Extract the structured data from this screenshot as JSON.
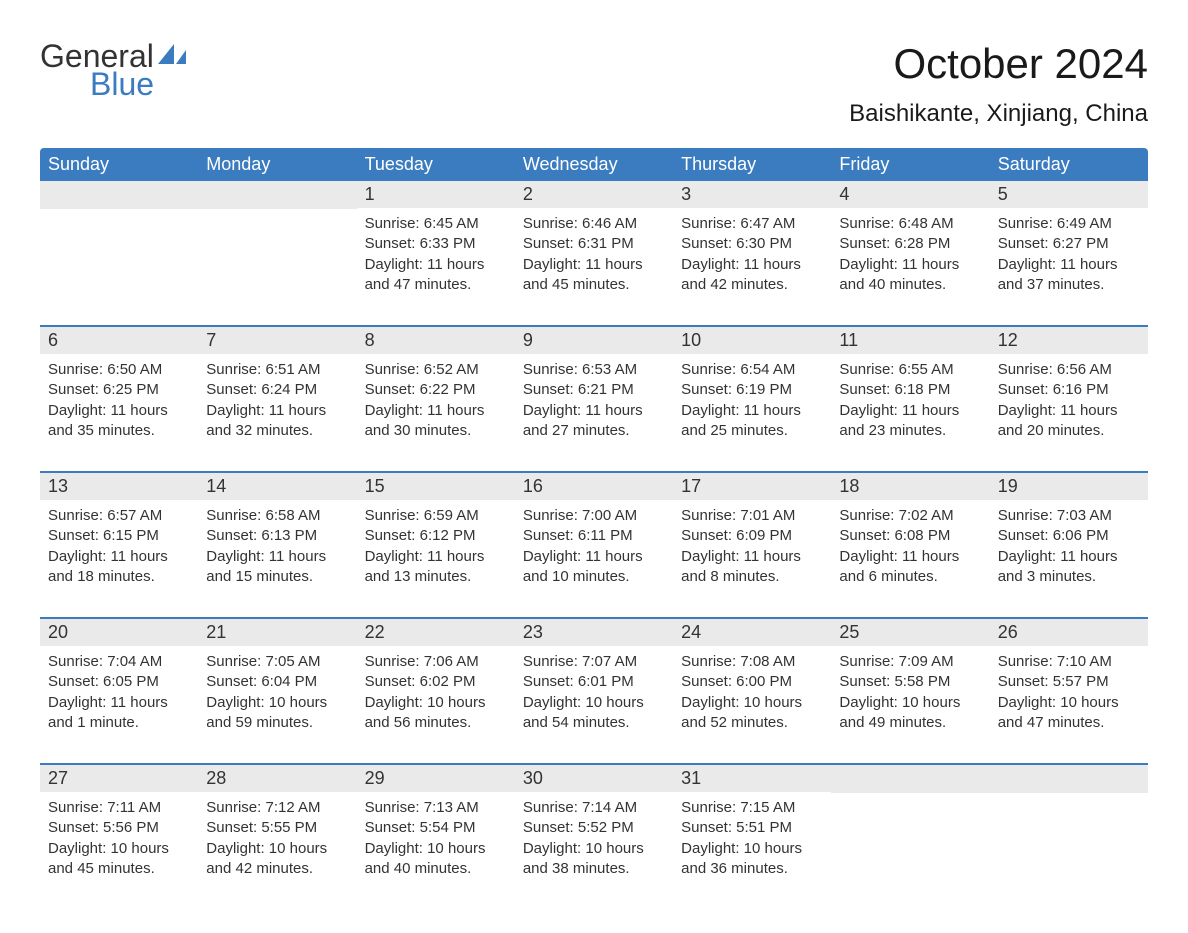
{
  "logo": {
    "text_general": "General",
    "text_blue": "Blue",
    "icon_color": "#3b7bbf"
  },
  "title": "October 2024",
  "location": "Baishikante, Xinjiang, China",
  "colors": {
    "header_bg": "#3b7bbf",
    "header_text": "#ffffff",
    "day_number_bg": "#eaeaea",
    "text": "#333333",
    "border": "#3b7bbf",
    "background": "#ffffff"
  },
  "day_names": [
    "Sunday",
    "Monday",
    "Tuesday",
    "Wednesday",
    "Thursday",
    "Friday",
    "Saturday"
  ],
  "weeks": [
    [
      null,
      null,
      {
        "n": "1",
        "sunrise": "6:45 AM",
        "sunset": "6:33 PM",
        "daylight": "11 hours and 47 minutes."
      },
      {
        "n": "2",
        "sunrise": "6:46 AM",
        "sunset": "6:31 PM",
        "daylight": "11 hours and 45 minutes."
      },
      {
        "n": "3",
        "sunrise": "6:47 AM",
        "sunset": "6:30 PM",
        "daylight": "11 hours and 42 minutes."
      },
      {
        "n": "4",
        "sunrise": "6:48 AM",
        "sunset": "6:28 PM",
        "daylight": "11 hours and 40 minutes."
      },
      {
        "n": "5",
        "sunrise": "6:49 AM",
        "sunset": "6:27 PM",
        "daylight": "11 hours and 37 minutes."
      }
    ],
    [
      {
        "n": "6",
        "sunrise": "6:50 AM",
        "sunset": "6:25 PM",
        "daylight": "11 hours and 35 minutes."
      },
      {
        "n": "7",
        "sunrise": "6:51 AM",
        "sunset": "6:24 PM",
        "daylight": "11 hours and 32 minutes."
      },
      {
        "n": "8",
        "sunrise": "6:52 AM",
        "sunset": "6:22 PM",
        "daylight": "11 hours and 30 minutes."
      },
      {
        "n": "9",
        "sunrise": "6:53 AM",
        "sunset": "6:21 PM",
        "daylight": "11 hours and 27 minutes."
      },
      {
        "n": "10",
        "sunrise": "6:54 AM",
        "sunset": "6:19 PM",
        "daylight": "11 hours and 25 minutes."
      },
      {
        "n": "11",
        "sunrise": "6:55 AM",
        "sunset": "6:18 PM",
        "daylight": "11 hours and 23 minutes."
      },
      {
        "n": "12",
        "sunrise": "6:56 AM",
        "sunset": "6:16 PM",
        "daylight": "11 hours and 20 minutes."
      }
    ],
    [
      {
        "n": "13",
        "sunrise": "6:57 AM",
        "sunset": "6:15 PM",
        "daylight": "11 hours and 18 minutes."
      },
      {
        "n": "14",
        "sunrise": "6:58 AM",
        "sunset": "6:13 PM",
        "daylight": "11 hours and 15 minutes."
      },
      {
        "n": "15",
        "sunrise": "6:59 AM",
        "sunset": "6:12 PM",
        "daylight": "11 hours and 13 minutes."
      },
      {
        "n": "16",
        "sunrise": "7:00 AM",
        "sunset": "6:11 PM",
        "daylight": "11 hours and 10 minutes."
      },
      {
        "n": "17",
        "sunrise": "7:01 AM",
        "sunset": "6:09 PM",
        "daylight": "11 hours and 8 minutes."
      },
      {
        "n": "18",
        "sunrise": "7:02 AM",
        "sunset": "6:08 PM",
        "daylight": "11 hours and 6 minutes."
      },
      {
        "n": "19",
        "sunrise": "7:03 AM",
        "sunset": "6:06 PM",
        "daylight": "11 hours and 3 minutes."
      }
    ],
    [
      {
        "n": "20",
        "sunrise": "7:04 AM",
        "sunset": "6:05 PM",
        "daylight": "11 hours and 1 minute."
      },
      {
        "n": "21",
        "sunrise": "7:05 AM",
        "sunset": "6:04 PM",
        "daylight": "10 hours and 59 minutes."
      },
      {
        "n": "22",
        "sunrise": "7:06 AM",
        "sunset": "6:02 PM",
        "daylight": "10 hours and 56 minutes."
      },
      {
        "n": "23",
        "sunrise": "7:07 AM",
        "sunset": "6:01 PM",
        "daylight": "10 hours and 54 minutes."
      },
      {
        "n": "24",
        "sunrise": "7:08 AM",
        "sunset": "6:00 PM",
        "daylight": "10 hours and 52 minutes."
      },
      {
        "n": "25",
        "sunrise": "7:09 AM",
        "sunset": "5:58 PM",
        "daylight": "10 hours and 49 minutes."
      },
      {
        "n": "26",
        "sunrise": "7:10 AM",
        "sunset": "5:57 PM",
        "daylight": "10 hours and 47 minutes."
      }
    ],
    [
      {
        "n": "27",
        "sunrise": "7:11 AM",
        "sunset": "5:56 PM",
        "daylight": "10 hours and 45 minutes."
      },
      {
        "n": "28",
        "sunrise": "7:12 AM",
        "sunset": "5:55 PM",
        "daylight": "10 hours and 42 minutes."
      },
      {
        "n": "29",
        "sunrise": "7:13 AM",
        "sunset": "5:54 PM",
        "daylight": "10 hours and 40 minutes."
      },
      {
        "n": "30",
        "sunrise": "7:14 AM",
        "sunset": "5:52 PM",
        "daylight": "10 hours and 38 minutes."
      },
      {
        "n": "31",
        "sunrise": "7:15 AM",
        "sunset": "5:51 PM",
        "daylight": "10 hours and 36 minutes."
      },
      null,
      null
    ]
  ],
  "labels": {
    "sunrise": "Sunrise:",
    "sunset": "Sunset:",
    "daylight": "Daylight:"
  }
}
